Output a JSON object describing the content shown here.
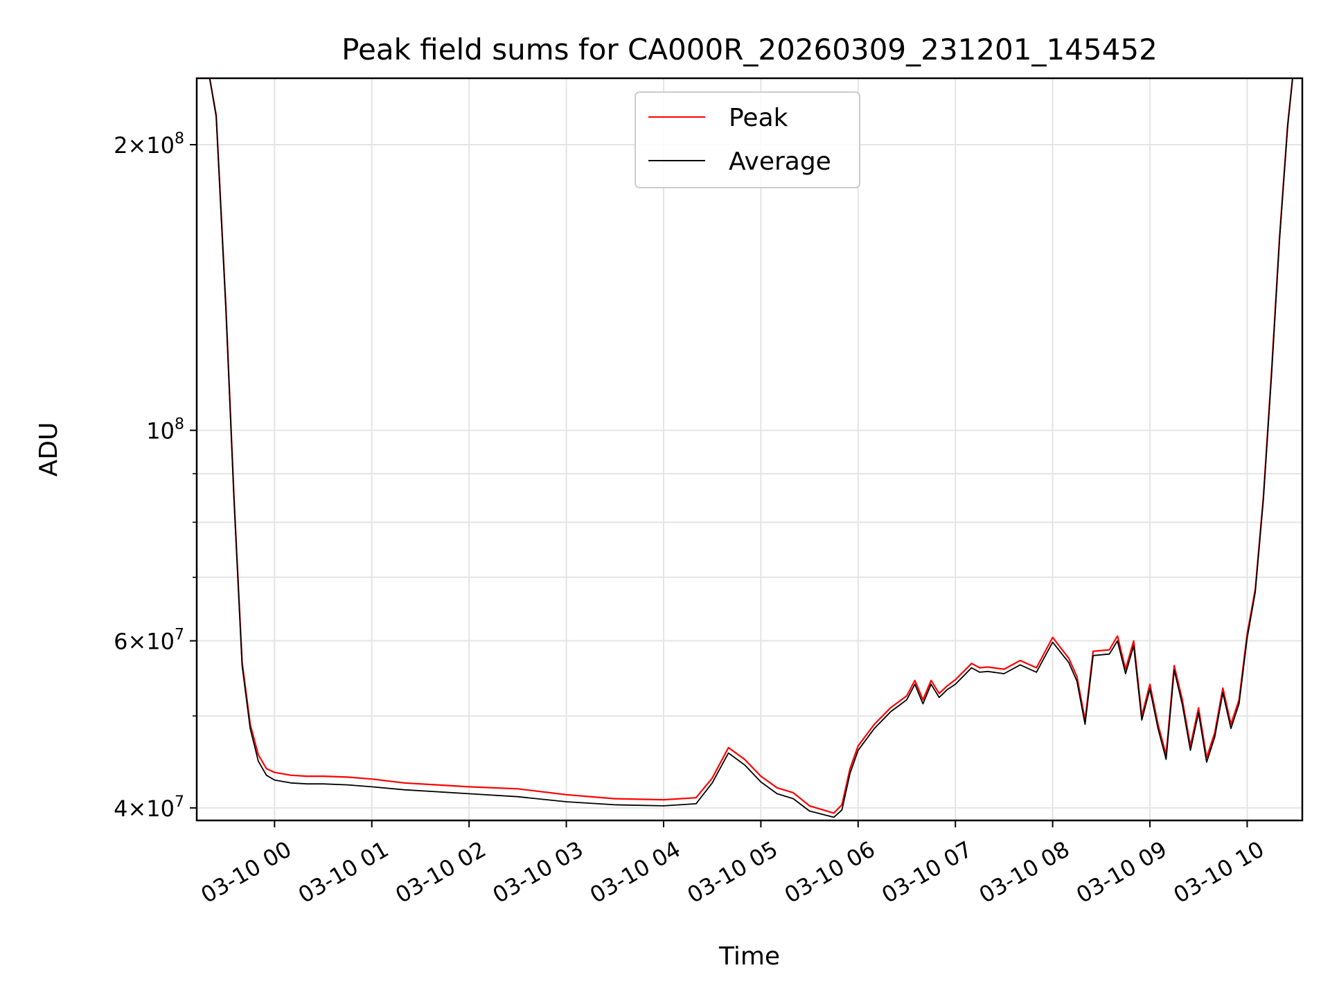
{
  "chart_data": {
    "type": "line",
    "title": "Peak field sums for CA000R_20260309_231201_145452",
    "xlabel": "Time",
    "ylabel": "ADU",
    "yscale": "log",
    "grid": true,
    "legend_placement": "upper center",
    "xlim": [
      "2026-03-09 23:12",
      "2026-03-10 10:34"
    ],
    "ylim": [
      38800000,
      235000000
    ],
    "x_ticks": [
      {
        "value": "2026-03-10 00:00",
        "label": "03-10 00"
      },
      {
        "value": "2026-03-10 01:00",
        "label": "03-10 01"
      },
      {
        "value": "2026-03-10 02:00",
        "label": "03-10 02"
      },
      {
        "value": "2026-03-10 03:00",
        "label": "03-10 03"
      },
      {
        "value": "2026-03-10 04:00",
        "label": "03-10 04"
      },
      {
        "value": "2026-03-10 05:00",
        "label": "03-10 05"
      },
      {
        "value": "2026-03-10 06:00",
        "label": "03-10 06"
      },
      {
        "value": "2026-03-10 07:00",
        "label": "03-10 07"
      },
      {
        "value": "2026-03-10 08:00",
        "label": "03-10 08"
      },
      {
        "value": "2026-03-10 09:00",
        "label": "03-10 09"
      },
      {
        "value": "2026-03-10 10:00",
        "label": "03-10 10"
      }
    ],
    "y_major_ticks": [
      {
        "value": 40000000,
        "mant": "4",
        "exp": "7"
      },
      {
        "value": 60000000,
        "mant": "6",
        "exp": "7"
      },
      {
        "value": 100000000,
        "mant": "",
        "exp": "8"
      },
      {
        "value": 200000000,
        "mant": "2",
        "exp": "8"
      }
    ],
    "y_minor_ticks": [
      50000000,
      70000000,
      80000000,
      90000000
    ],
    "series": [
      {
        "name": "Peak",
        "color": "#ff0000",
        "x": [
          "2026-03-09 23:12",
          "2026-03-09 23:20",
          "2026-03-09 23:24",
          "2026-03-09 23:30",
          "2026-03-09 23:35",
          "2026-03-09 23:40",
          "2026-03-09 23:45",
          "2026-03-09 23:50",
          "2026-03-09 23:55",
          "2026-03-10 00:00",
          "2026-03-10 00:10",
          "2026-03-10 00:20",
          "2026-03-10 00:30",
          "2026-03-10 00:45",
          "2026-03-10 01:00",
          "2026-03-10 01:20",
          "2026-03-10 01:40",
          "2026-03-10 02:00",
          "2026-03-10 02:30",
          "2026-03-10 03:00",
          "2026-03-10 03:30",
          "2026-03-10 04:00",
          "2026-03-10 04:20",
          "2026-03-10 04:30",
          "2026-03-10 04:40",
          "2026-03-10 04:50",
          "2026-03-10 05:00",
          "2026-03-10 05:10",
          "2026-03-10 05:20",
          "2026-03-10 05:30",
          "2026-03-10 05:45",
          "2026-03-10 05:50",
          "2026-03-10 05:55",
          "2026-03-10 06:00",
          "2026-03-10 06:10",
          "2026-03-10 06:20",
          "2026-03-10 06:30",
          "2026-03-10 06:35",
          "2026-03-10 06:40",
          "2026-03-10 06:45",
          "2026-03-10 06:50",
          "2026-03-10 06:55",
          "2026-03-10 07:00",
          "2026-03-10 07:10",
          "2026-03-10 07:15",
          "2026-03-10 07:20",
          "2026-03-10 07:30",
          "2026-03-10 07:40",
          "2026-03-10 07:50",
          "2026-03-10 08:00",
          "2026-03-10 08:10",
          "2026-03-10 08:15",
          "2026-03-10 08:20",
          "2026-03-10 08:25",
          "2026-03-10 08:35",
          "2026-03-10 08:40",
          "2026-03-10 08:45",
          "2026-03-10 08:50",
          "2026-03-10 08:55",
          "2026-03-10 09:00",
          "2026-03-10 09:05",
          "2026-03-10 09:10",
          "2026-03-10 09:15",
          "2026-03-10 09:20",
          "2026-03-10 09:25",
          "2026-03-10 09:30",
          "2026-03-10 09:35",
          "2026-03-10 09:40",
          "2026-03-10 09:45",
          "2026-03-10 09:50",
          "2026-03-10 09:55",
          "2026-03-10 10:00",
          "2026-03-10 10:05",
          "2026-03-10 10:10",
          "2026-03-10 10:15",
          "2026-03-10 10:20",
          "2026-03-10 10:25",
          "2026-03-10 10:28"
        ],
        "y": [
          235000000,
          235000000,
          215000000,
          135000000,
          85000000,
          57000000,
          49000000,
          45500000,
          44000000,
          43600000,
          43300000,
          43200000,
          43200000,
          43100000,
          42900000,
          42500000,
          42300000,
          42100000,
          41900000,
          41300000,
          40900000,
          40800000,
          41000000,
          43000000,
          46300000,
          45000000,
          43200000,
          42000000,
          41500000,
          40200000,
          39500000,
          40300000,
          44000000,
          46500000,
          49000000,
          51000000,
          52500000,
          54500000,
          52000000,
          54500000,
          52800000,
          53800000,
          54600000,
          56800000,
          56200000,
          56300000,
          56000000,
          57200000,
          56200000,
          60500000,
          57500000,
          55000000,
          49500000,
          58500000,
          58700000,
          60700000,
          56000000,
          60000000,
          50000000,
          54000000,
          49000000,
          45500000,
          56500000,
          52000000,
          46500000,
          51000000,
          45200000,
          48000000,
          53500000,
          49000000,
          52000000,
          61000000,
          68000000,
          85000000,
          115000000,
          160000000,
          210000000,
          235000000
        ]
      },
      {
        "name": "Average",
        "color": "#000000",
        "x": [
          "2026-03-09 23:12",
          "2026-03-09 23:20",
          "2026-03-09 23:24",
          "2026-03-09 23:30",
          "2026-03-09 23:35",
          "2026-03-09 23:40",
          "2026-03-09 23:45",
          "2026-03-09 23:50",
          "2026-03-09 23:55",
          "2026-03-10 00:00",
          "2026-03-10 00:10",
          "2026-03-10 00:20",
          "2026-03-10 00:30",
          "2026-03-10 00:45",
          "2026-03-10 01:00",
          "2026-03-10 01:20",
          "2026-03-10 01:40",
          "2026-03-10 02:00",
          "2026-03-10 02:30",
          "2026-03-10 03:00",
          "2026-03-10 03:30",
          "2026-03-10 04:00",
          "2026-03-10 04:20",
          "2026-03-10 04:30",
          "2026-03-10 04:40",
          "2026-03-10 04:50",
          "2026-03-10 05:00",
          "2026-03-10 05:10",
          "2026-03-10 05:20",
          "2026-03-10 05:30",
          "2026-03-10 05:45",
          "2026-03-10 05:50",
          "2026-03-10 05:55",
          "2026-03-10 06:00",
          "2026-03-10 06:10",
          "2026-03-10 06:20",
          "2026-03-10 06:30",
          "2026-03-10 06:35",
          "2026-03-10 06:40",
          "2026-03-10 06:45",
          "2026-03-10 06:50",
          "2026-03-10 06:55",
          "2026-03-10 07:00",
          "2026-03-10 07:10",
          "2026-03-10 07:15",
          "2026-03-10 07:20",
          "2026-03-10 07:30",
          "2026-03-10 07:40",
          "2026-03-10 07:50",
          "2026-03-10 08:00",
          "2026-03-10 08:10",
          "2026-03-10 08:15",
          "2026-03-10 08:20",
          "2026-03-10 08:25",
          "2026-03-10 08:35",
          "2026-03-10 08:40",
          "2026-03-10 08:45",
          "2026-03-10 08:50",
          "2026-03-10 08:55",
          "2026-03-10 09:00",
          "2026-03-10 09:05",
          "2026-03-10 09:10",
          "2026-03-10 09:15",
          "2026-03-10 09:20",
          "2026-03-10 09:25",
          "2026-03-10 09:30",
          "2026-03-10 09:35",
          "2026-03-10 09:40",
          "2026-03-10 09:45",
          "2026-03-10 09:50",
          "2026-03-10 09:55",
          "2026-03-10 10:00",
          "2026-03-10 10:05",
          "2026-03-10 10:10",
          "2026-03-10 10:15",
          "2026-03-10 10:20",
          "2026-03-10 10:25",
          "2026-03-10 10:28"
        ],
        "y": [
          235000000,
          235000000,
          214000000,
          134000000,
          84500000,
          56500000,
          48500000,
          44800000,
          43300000,
          42800000,
          42500000,
          42400000,
          42400000,
          42300000,
          42100000,
          41800000,
          41600000,
          41400000,
          41100000,
          40600000,
          40300000,
          40200000,
          40400000,
          42500000,
          45700000,
          44400000,
          42600000,
          41400000,
          40900000,
          39700000,
          39100000,
          39800000,
          43500000,
          46000000,
          48500000,
          50500000,
          52000000,
          54000000,
          51500000,
          54000000,
          52300000,
          53300000,
          54000000,
          56200000,
          55600000,
          55700000,
          55400000,
          56600000,
          55600000,
          59800000,
          56900000,
          54400000,
          49000000,
          57900000,
          58100000,
          60000000,
          55400000,
          59300000,
          49500000,
          53400000,
          48500000,
          45000000,
          55900000,
          51400000,
          46000000,
          50400000,
          44700000,
          47500000,
          52900000,
          48500000,
          51500000,
          60400000,
          67500000,
          84500000,
          114000000,
          159000000,
          209000000,
          235000000
        ]
      }
    ]
  }
}
